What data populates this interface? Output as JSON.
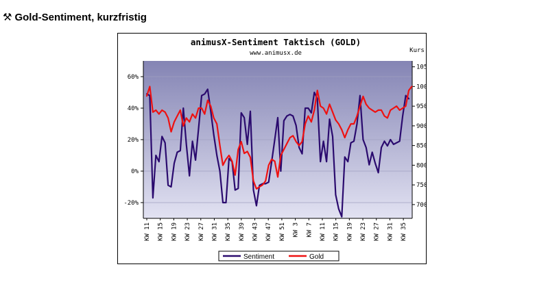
{
  "page": {
    "heading": "Gold-Sentiment, kurzfristig",
    "heading_icon": "hammer-pick-icon"
  },
  "chart_data": {
    "type": "line",
    "title": "animusX-Sentiment Taktisch (GOLD)",
    "subtitle": "www.animusx.de",
    "right_axis_title": "Kurs",
    "x_tick_labels": [
      "KW 11",
      "KW 15",
      "KW 19",
      "KW 23",
      "KW 27",
      "KW 31",
      "KW 35",
      "KW 39",
      "KW 43",
      "KW 47",
      "KW 51",
      "KW 3",
      "KW 7",
      "KW 11",
      "KW 15",
      "KW 19",
      "KW 23",
      "KW 27",
      "KW 31",
      "KW 35"
    ],
    "y_left": {
      "ticks": [
        -20,
        0,
        20,
        40,
        60
      ],
      "tick_labels": [
        "-20%",
        "0%",
        "20%",
        "40%",
        "60%"
      ],
      "range": [
        -30,
        70
      ]
    },
    "y_right": {
      "ticks": [
        700,
        750,
        800,
        850,
        900,
        950,
        1000,
        1050
      ],
      "tick_labels": [
        "700$",
        "750$",
        "800$",
        "850$",
        "900$",
        "950$",
        "1000$",
        "1050$"
      ],
      "range": [
        665,
        1065
      ]
    },
    "grid": true,
    "legend_position": "bottom-center",
    "colors": {
      "sentiment": "#2a0a6e",
      "gold": "#ee1111",
      "plot_top": "#8484b4",
      "plot_bottom": "#e2e2f2"
    },
    "series": [
      {
        "name": "Sentiment",
        "axis": "left",
        "values": [
          49,
          48,
          -17,
          10,
          6,
          22,
          18,
          -9,
          -10,
          5,
          12,
          13,
          40,
          17,
          -3,
          19,
          7,
          27,
          48,
          49,
          52,
          38,
          23,
          10,
          0,
          -20,
          -20,
          8,
          6,
          -12,
          -11,
          37,
          34,
          17,
          38,
          -12,
          -22,
          -9,
          -8,
          -8,
          -7,
          6,
          20,
          34,
          0,
          32,
          35,
          36,
          35,
          29,
          15,
          11,
          40,
          40,
          37,
          50,
          46,
          6,
          19,
          6,
          33,
          22,
          -15,
          -24,
          -29,
          9,
          6,
          18,
          19,
          30,
          48,
          20,
          15,
          4,
          12,
          5,
          -1,
          15,
          19,
          16,
          20,
          17,
          18,
          19,
          35,
          48,
          46
        ]
      },
      {
        "name": "Gold",
        "axis": "right",
        "values": [
          976,
          1000,
          935,
          940,
          930,
          940,
          935,
          920,
          885,
          910,
          925,
          940,
          900,
          920,
          910,
          930,
          920,
          945,
          945,
          930,
          965,
          950,
          920,
          905,
          850,
          800,
          815,
          825,
          810,
          775,
          840,
          860,
          830,
          835,
          820,
          760,
          740,
          745,
          750,
          760,
          800,
          815,
          810,
          770,
          825,
          840,
          855,
          870,
          875,
          860,
          850,
          860,
          905,
          925,
          910,
          940,
          990,
          950,
          945,
          930,
          955,
          935,
          915,
          905,
          890,
          870,
          890,
          905,
          905,
          925,
          950,
          975,
          955,
          945,
          940,
          935,
          940,
          940,
          925,
          920,
          940,
          945,
          950,
          940,
          945,
          950,
          990,
          1000
        ]
      }
    ]
  }
}
